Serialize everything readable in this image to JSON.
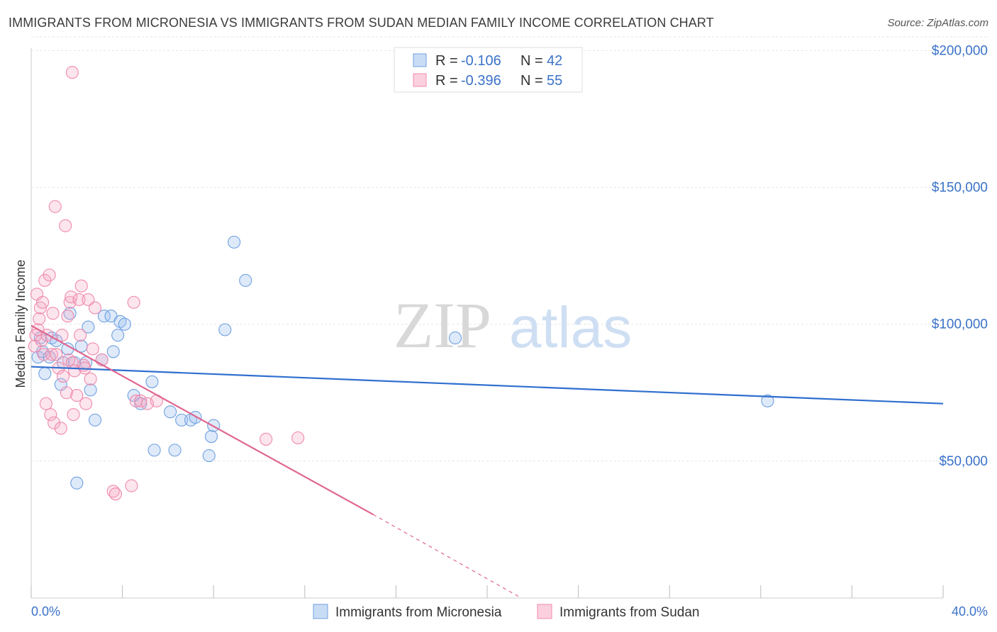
{
  "title": "IMMIGRANTS FROM MICRONESIA VS IMMIGRANTS FROM SUDAN MEDIAN FAMILY INCOME CORRELATION CHART",
  "source": "Source: ZipAtlas.com",
  "watermark": {
    "zip": "ZIP",
    "atlas": "atlas"
  },
  "colors": {
    "micronesia": "#6fa0e0",
    "micronesia_line": "#2f6fcf",
    "sudan": "#f08aac",
    "sudan_line": "#e06690",
    "axis_text": "#3a72c8"
  },
  "stats_legend": [
    {
      "r_label": "R =",
      "r_value": "-0.106",
      "n_label": "N =",
      "n_value": "42"
    },
    {
      "r_label": "R =",
      "r_value": "-0.396",
      "n_label": "N =",
      "n_value": "55"
    }
  ],
  "chart_data": {
    "type": "scatter",
    "title": "IMMIGRANTS FROM MICRONESIA VS IMMIGRANTS FROM SUDAN MEDIAN FAMILY INCOME CORRELATION CHART",
    "xlabel": "",
    "ylabel": "Median Family Income",
    "xlim": [
      0,
      40
    ],
    "ylim": [
      0,
      205000
    ],
    "x_tick_labels": [
      "0.0%",
      "40.0%"
    ],
    "y_ticks": [
      50000,
      100000,
      150000,
      200000
    ],
    "y_tick_labels": [
      "$50,000",
      "$100,000",
      "$150,000",
      "$200,000"
    ],
    "grid": true,
    "legend_position": "bottom-center",
    "series": [
      {
        "name": "Immigrants from Micronesia",
        "trend": {
          "x0": 0,
          "y0": 84500,
          "x1": 40,
          "y1": 71000
        },
        "points": [
          [
            0.3,
            88000
          ],
          [
            0.4,
            95000
          ],
          [
            0.5,
            90000
          ],
          [
            0.6,
            82000
          ],
          [
            0.8,
            88000
          ],
          [
            0.9,
            95000
          ],
          [
            1.1,
            94000
          ],
          [
            1.3,
            78000
          ],
          [
            1.4,
            86000
          ],
          [
            1.6,
            91000
          ],
          [
            1.7,
            104000
          ],
          [
            1.9,
            86000
          ],
          [
            2.2,
            92000
          ],
          [
            2.4,
            86000
          ],
          [
            2.5,
            99000
          ],
          [
            2.6,
            76000
          ],
          [
            2.8,
            65000
          ],
          [
            3.1,
            87000
          ],
          [
            3.2,
            103000
          ],
          [
            3.5,
            103000
          ],
          [
            3.6,
            90000
          ],
          [
            3.8,
            96000
          ],
          [
            3.9,
            101000
          ],
          [
            4.1,
            100000
          ],
          [
            4.5,
            74000
          ],
          [
            4.8,
            71000
          ],
          [
            5.3,
            79000
          ],
          [
            5.4,
            54000
          ],
          [
            6.1,
            68000
          ],
          [
            6.3,
            54000
          ],
          [
            6.6,
            65000
          ],
          [
            7.0,
            65000
          ],
          [
            7.2,
            66000
          ],
          [
            7.8,
            52000
          ],
          [
            7.9,
            59000
          ],
          [
            8.0,
            63000
          ],
          [
            8.5,
            98000
          ],
          [
            8.9,
            130000
          ],
          [
            9.4,
            116000
          ],
          [
            18.6,
            95000
          ],
          [
            32.3,
            72000
          ],
          [
            2.0,
            42000
          ]
        ]
      },
      {
        "name": "Immigrants from Sudan",
        "trend": {
          "x0": 0,
          "y0": 99500,
          "x1": 15.0,
          "y1": 30500,
          "dash_x1": 21.5,
          "dash_y1": 0
        },
        "points": [
          [
            0.2,
            96000
          ],
          [
            0.25,
            111000
          ],
          [
            0.3,
            98000
          ],
          [
            0.35,
            102000
          ],
          [
            0.4,
            106000
          ],
          [
            0.45,
            94000
          ],
          [
            0.5,
            108000
          ],
          [
            0.55,
            89000
          ],
          [
            0.6,
            116000
          ],
          [
            0.65,
            71000
          ],
          [
            0.7,
            96000
          ],
          [
            0.8,
            118000
          ],
          [
            0.85,
            67000
          ],
          [
            0.9,
            89000
          ],
          [
            0.95,
            104000
          ],
          [
            1.0,
            64000
          ],
          [
            1.1,
            89000
          ],
          [
            1.2,
            84000
          ],
          [
            1.3,
            62000
          ],
          [
            1.35,
            96000
          ],
          [
            1.4,
            81000
          ],
          [
            1.5,
            136000
          ],
          [
            1.55,
            75000
          ],
          [
            1.6,
            103000
          ],
          [
            1.65,
            87000
          ],
          [
            1.7,
            108000
          ],
          [
            1.75,
            110000
          ],
          [
            1.8,
            86000
          ],
          [
            1.85,
            67000
          ],
          [
            1.9,
            83000
          ],
          [
            2.0,
            74000
          ],
          [
            2.1,
            109000
          ],
          [
            2.15,
            96000
          ],
          [
            2.2,
            114000
          ],
          [
            2.3,
            85000
          ],
          [
            2.35,
            84000
          ],
          [
            2.4,
            71000
          ],
          [
            2.5,
            109000
          ],
          [
            2.6,
            80000
          ],
          [
            2.7,
            91000
          ],
          [
            2.8,
            106000
          ],
          [
            3.1,
            87000
          ],
          [
            3.6,
            39000
          ],
          [
            3.7,
            38000
          ],
          [
            4.4,
            41000
          ],
          [
            4.5,
            108000
          ],
          [
            4.6,
            72000
          ],
          [
            4.8,
            72000
          ],
          [
            5.1,
            71000
          ],
          [
            5.5,
            72000
          ],
          [
            10.3,
            58000
          ],
          [
            11.7,
            58500
          ],
          [
            1.05,
            143000
          ],
          [
            1.8,
            192000
          ],
          [
            0.15,
            92000
          ]
        ]
      }
    ]
  }
}
